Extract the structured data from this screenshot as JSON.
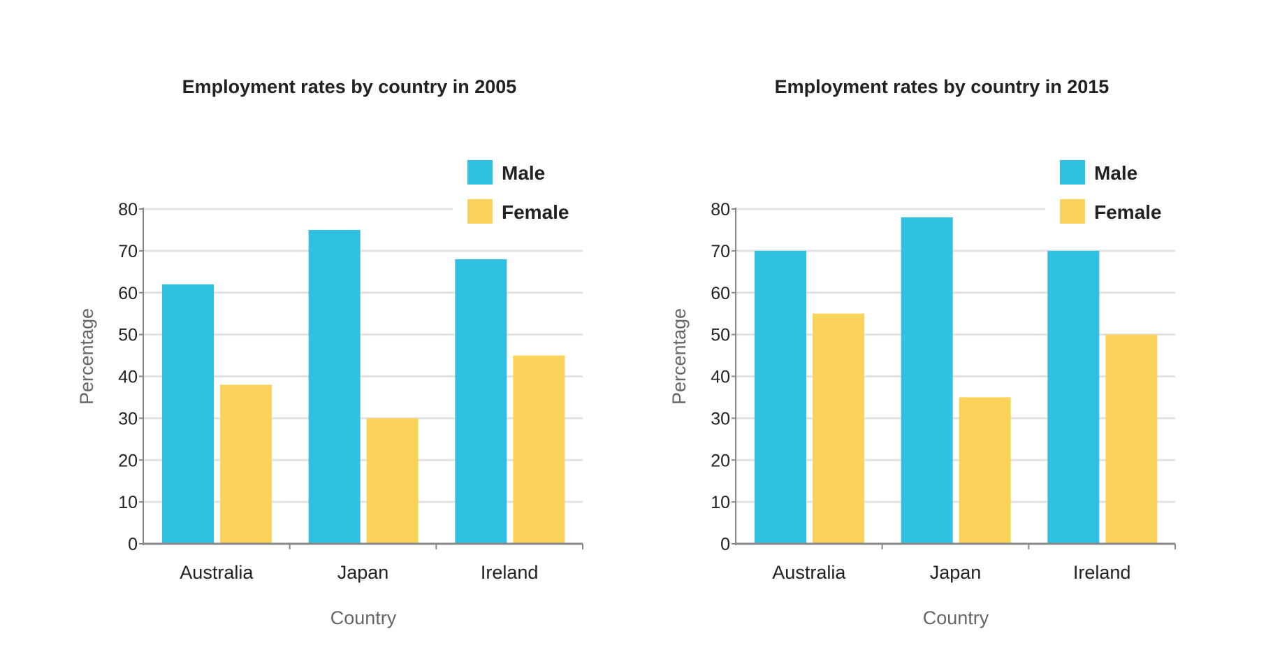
{
  "chart_data": [
    {
      "type": "bar",
      "title": "Employment rates by country in 2005",
      "xlabel": "Country",
      "ylabel": "Percentage",
      "categories": [
        "Australia",
        "Japan",
        "Ireland"
      ],
      "series": [
        {
          "name": "Male",
          "color": "#2fc0e2",
          "values": [
            62,
            75,
            68
          ]
        },
        {
          "name": "Female",
          "color": "#fbd35a",
          "values": [
            38,
            30,
            45
          ]
        }
      ],
      "ylim": [
        0,
        80
      ],
      "yticks": [
        0,
        10,
        20,
        30,
        40,
        50,
        60,
        70,
        80
      ],
      "grid": true,
      "legend": "top-right"
    },
    {
      "type": "bar",
      "title": "Employment rates by country in 2015",
      "xlabel": "Country",
      "ylabel": "Percentage",
      "categories": [
        "Australia",
        "Japan",
        "Ireland"
      ],
      "series": [
        {
          "name": "Male",
          "color": "#2fc0e2",
          "values": [
            70,
            78,
            70
          ]
        },
        {
          "name": "Female",
          "color": "#fbd35a",
          "values": [
            55,
            35,
            50
          ]
        }
      ],
      "ylim": [
        0,
        80
      ],
      "yticks": [
        0,
        10,
        20,
        30,
        40,
        50,
        60,
        70,
        80
      ],
      "grid": true,
      "legend": "top-right"
    }
  ]
}
